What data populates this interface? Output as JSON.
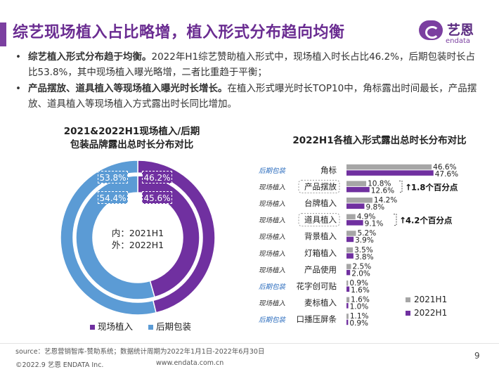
{
  "header": {
    "title": "综艺现场植入占比略增，植入形式分布趋向均衡",
    "logo_cn": "艺恩",
    "logo_en": "endata"
  },
  "bullets": [
    {
      "bold": "综艺植入形式分布趋于均衡。",
      "text": "2022年H1综艺赞助植入形式中，现场植入时长占比46.2%，后期包装时长占比53.8%，其中现场植入曝光略增，二者比重趋于平衡；"
    },
    {
      "bold": "产品摆放、道具植入等现场植入曝光时长增长。",
      "text": "在植入形式曝光时长TOP10中，角标露出时间最长，产品摆放、道具植入等现场植入方式露出时长同比增加。"
    }
  ],
  "colors": {
    "purple": "#7030a0",
    "blue": "#5b9bd5",
    "gray": "#a6a6a6",
    "accent_title": "#6a2c91"
  },
  "chart_data": [
    {
      "type": "pie",
      "title": "2021&2022H1现场植入/后期包装品牌露出总时长分布对比",
      "title_lines": [
        "2021&2022H1现场植入/后期",
        "包装品牌露出总时长分布对比"
      ],
      "center_labels": [
        "内：2021H1",
        "外：2022H1"
      ],
      "legend": [
        "现场植入",
        "后期包装"
      ],
      "legend_placement": "bottom",
      "rings": [
        {
          "name": "2021H1",
          "values": [
            45.6,
            54.4
          ],
          "labels": [
            "45.6%",
            "54.4%"
          ]
        },
        {
          "name": "2022H1",
          "values": [
            46.2,
            53.8
          ],
          "labels": [
            "46.2%",
            "53.8%"
          ]
        }
      ]
    },
    {
      "type": "bar",
      "orientation": "horizontal",
      "title": "2022H1各植入形式露出总时长分布对比",
      "categories": [
        "角标",
        "产品摆放",
        "台牌植入",
        "道具植入",
        "背景植入",
        "灯箱植入",
        "产品使用",
        "花字创可贴",
        "麦标植入",
        "口播压屏条"
      ],
      "category_types": [
        "后期包装",
        "现场植入",
        "现场植入",
        "现场植入",
        "现场植入",
        "现场植入",
        "现场植入",
        "后期包装",
        "现场植入",
        "后期包装"
      ],
      "series": [
        {
          "name": "2021H1",
          "values": [
            46.6,
            10.8,
            14.2,
            4.9,
            5.2,
            3.5,
            2.5,
            0.9,
            1.6,
            1.1
          ],
          "labels": [
            "46.6%",
            "10.8%",
            "14.2%",
            "4.9%",
            "5.2%",
            "3.5%",
            "2.5%",
            "0.9%",
            "1.6%",
            "1.1%"
          ]
        },
        {
          "name": "2022H1",
          "values": [
            47.6,
            12.6,
            9.8,
            9.1,
            3.9,
            3.8,
            2.0,
            1.6,
            1.0,
            0.9
          ],
          "labels": [
            "47.6%",
            "12.6%",
            "9.8%",
            "9.1%",
            "3.9%",
            "3.8%",
            "2.0%",
            "1.6%",
            "1.0%",
            "0.9%"
          ]
        }
      ],
      "annotations": [
        {
          "category": "产品摆放",
          "text": "1.8个百分点"
        },
        {
          "category": "道具植入",
          "text": "4.2个百分点"
        }
      ],
      "legend_placement": "bottom-right"
    }
  ],
  "footer": {
    "source": "source：艺恩营销智库-赞助系统；数据统计周期为2022年1月1日-2022年6月30日",
    "copyright": "©2022.9 艺恩 ENDATA Inc.",
    "url": "www.endata.com.cn",
    "page": "9"
  }
}
